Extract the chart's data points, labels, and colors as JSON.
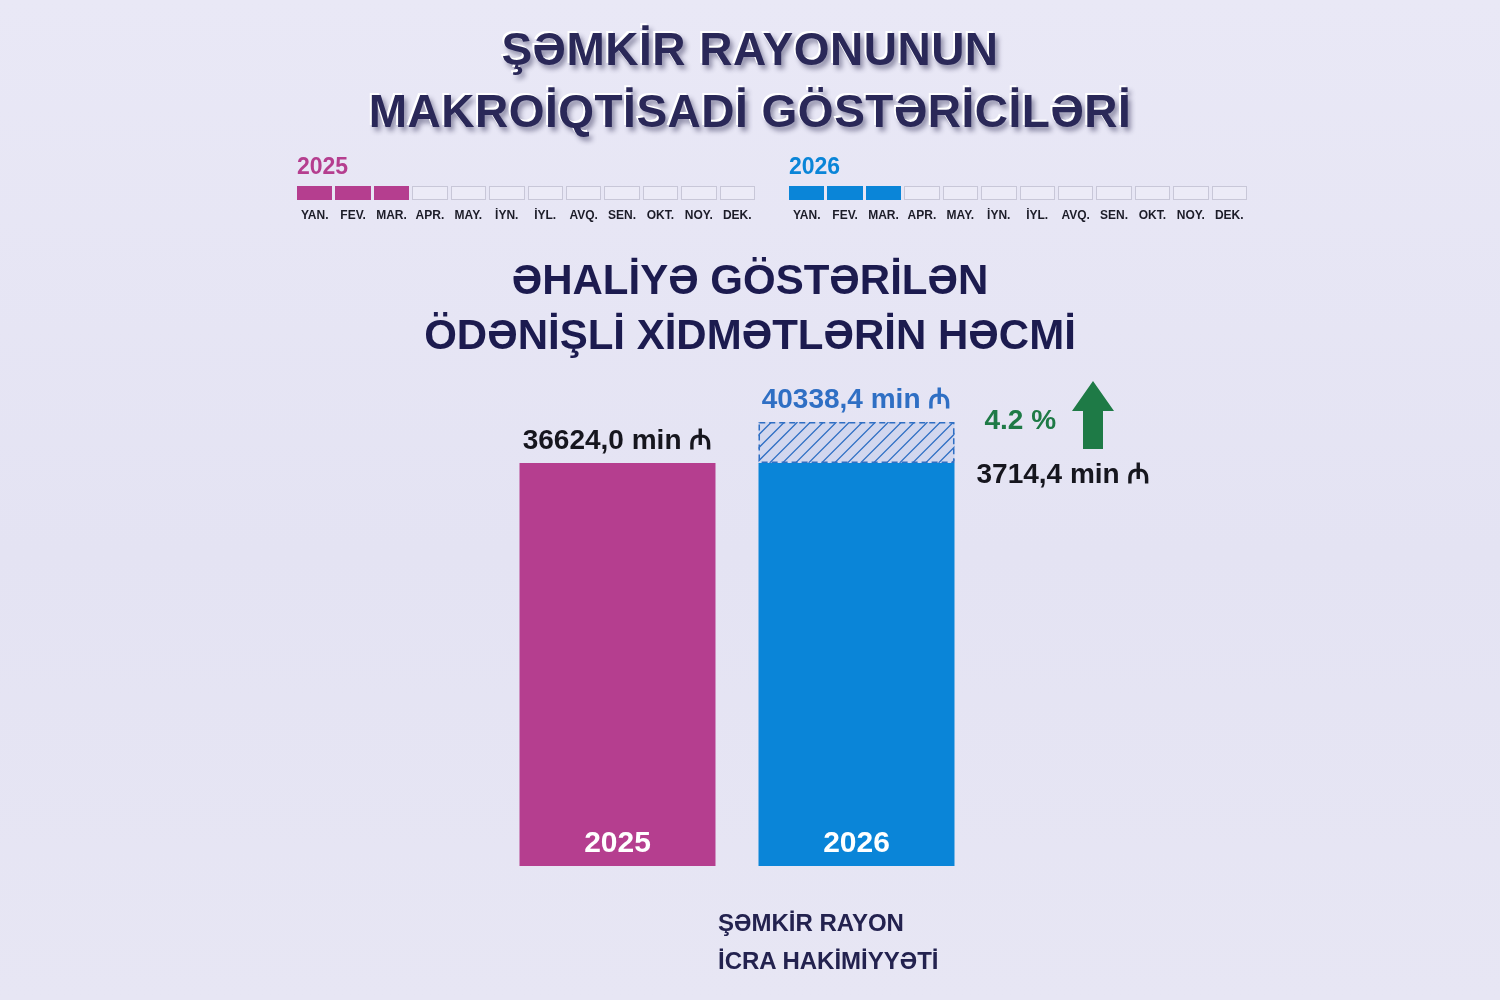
{
  "chart_data": {
    "type": "bar",
    "title": "ŞƏMKİR RAYONUNUN MAKROİQTİSADİ GÖSTƏRİCİLƏRİ",
    "subtitle": "ƏHALİYƏ GÖSTƏRİLƏN ÖDƏNİŞLİ XİDMƏTLƏRİN HƏCMİ",
    "categories": [
      "2025",
      "2026"
    ],
    "series": [
      {
        "colors": [
          "#b53e8f",
          "#0a85d8"
        ],
        "values": [
          36624.0,
          36624.0
        ]
      },
      {
        "color": "#2f6fc4",
        "values": [
          null,
          3714.4
        ],
        "value_labels": [
          null,
          "3714,4 min ₼"
        ]
      }
    ],
    "stacked": true,
    "totals": [
      "36624,0 min ₼",
      "40338,4 min ₼"
    ],
    "annotations": [
      "4.2 %",
      "2025",
      "YAN.",
      "FEV.",
      "MAR.",
      "APR.",
      "MAY.",
      "İYN.",
      "İYL.",
      "AVQ.",
      "SEN.",
      "OKT.",
      "NOY.",
      "DEK.",
      "2026",
      "YAN.",
      "FEV.",
      "MAR.",
      "APR.",
      "MAY.",
      "İYN.",
      "İYL.",
      "AVQ.",
      "SEN.",
      "OKT.",
      "NOY.",
      "DEK.",
      "ŞƏMKİR RAYON İCRA HAKİMİYYƏTİ"
    ]
  }
}
